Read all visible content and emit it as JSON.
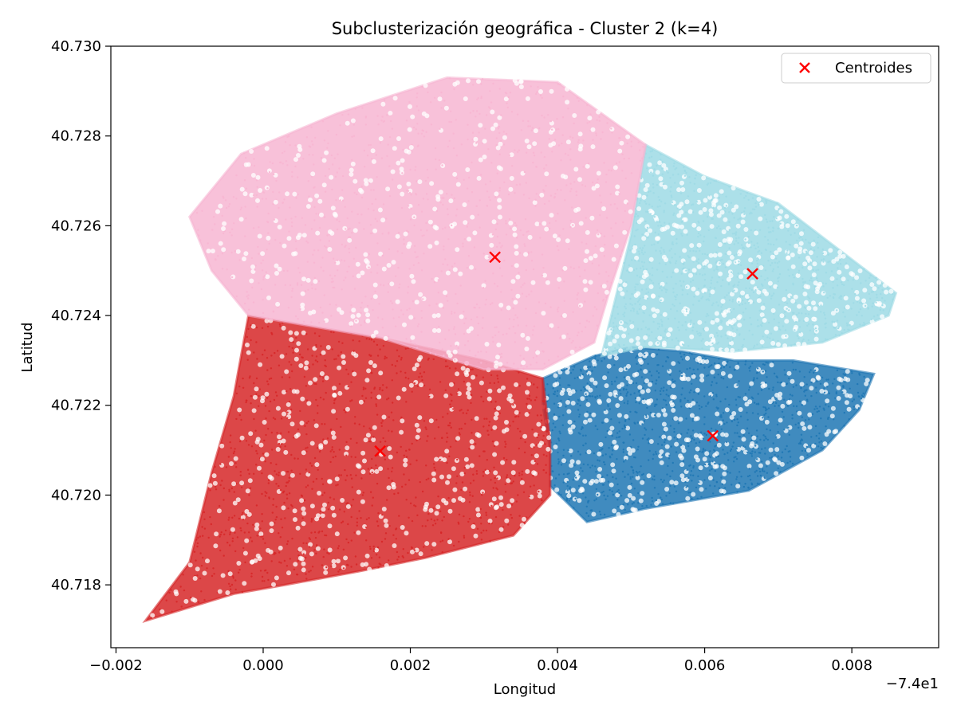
{
  "chart_data": {
    "type": "scatter",
    "title": "Subclusterización geográfica - Cluster 2 (k=4)",
    "xlabel": "Longitud",
    "ylabel": "Latitud",
    "x_offset_label": "−7.4e1",
    "xlim": [
      -0.00207,
      0.00918
    ],
    "ylim": [
      40.7166,
      40.73
    ],
    "x_ticks": [
      -0.002,
      0.0,
      0.002,
      0.004,
      0.006,
      0.008
    ],
    "x_tick_labels": [
      "−0.002",
      "0.000",
      "0.002",
      "0.004",
      "0.006",
      "0.008"
    ],
    "y_ticks": [
      40.718,
      40.72,
      40.722,
      40.724,
      40.726,
      40.728,
      40.73
    ],
    "y_tick_labels": [
      "40.718",
      "40.720",
      "40.722",
      "40.724",
      "40.726",
      "40.728",
      "40.730"
    ],
    "grid": false,
    "legend": {
      "position": "top-right",
      "entries": [
        "Centroides"
      ]
    },
    "centroid_color": "#ff0000",
    "clusters": [
      {
        "id": 0,
        "color": "#1f77b4",
        "centroid": [
          0.00611,
          40.72132
        ],
        "region": [
          [
            0.0038,
            40.7226
          ],
          [
            0.0045,
            40.7231
          ],
          [
            0.005,
            40.7233
          ],
          [
            0.0057,
            40.7232
          ],
          [
            0.0064,
            40.723
          ],
          [
            0.0072,
            40.723
          ],
          [
            0.0083,
            40.7227
          ],
          [
            0.0081,
            40.7219
          ],
          [
            0.0076,
            40.721
          ],
          [
            0.0066,
            40.7201
          ],
          [
            0.0052,
            40.7197
          ],
          [
            0.0044,
            40.7194
          ],
          [
            0.0039,
            40.7202
          ],
          [
            0.0039,
            40.721
          ],
          [
            0.0038,
            40.722
          ]
        ]
      },
      {
        "id": 1,
        "color": "#d62728",
        "centroid": [
          0.00159,
          40.72098
        ],
        "region": [
          [
            -0.0002,
            40.724
          ],
          [
            0.0016,
            40.7235
          ],
          [
            0.003,
            40.723
          ],
          [
            0.0038,
            40.7226
          ],
          [
            0.0039,
            40.7212
          ],
          [
            0.0039,
            40.72
          ],
          [
            0.0034,
            40.7191
          ],
          [
            0.0022,
            40.7186
          ],
          [
            0.0013,
            40.7183
          ],
          [
            0.0003,
            40.718
          ],
          [
            -0.0004,
            40.7178
          ],
          [
            -0.0016,
            40.7172
          ],
          [
            -0.001,
            40.7185
          ],
          [
            -0.0007,
            40.7205
          ],
          [
            -0.0004,
            40.7222
          ]
        ]
      },
      {
        "id": 2,
        "color": "#9edae5",
        "centroid": [
          0.00665,
          40.72493
        ],
        "region": [
          [
            0.0052,
            40.7278
          ],
          [
            0.006,
            40.7271
          ],
          [
            0.007,
            40.7265
          ],
          [
            0.0086,
            40.7245
          ],
          [
            0.0085,
            40.724
          ],
          [
            0.0076,
            40.7234
          ],
          [
            0.0064,
            40.7232
          ],
          [
            0.0052,
            40.7233
          ],
          [
            0.0046,
            40.7231
          ],
          [
            0.0047,
            40.7238
          ],
          [
            0.005,
            40.7258
          ]
        ]
      },
      {
        "id": 3,
        "color": "#f7b6d2",
        "centroid": [
          0.00315,
          40.7253
        ],
        "region": [
          [
            -0.0003,
            40.7276
          ],
          [
            0.001,
            40.7285
          ],
          [
            0.0025,
            40.7293
          ],
          [
            0.004,
            40.7292
          ],
          [
            0.0052,
            40.7278
          ],
          [
            0.005,
            40.726
          ],
          [
            0.0047,
            40.7245
          ],
          [
            0.0045,
            40.7234
          ],
          [
            0.0038,
            40.7228
          ],
          [
            0.003,
            40.7228
          ],
          [
            0.0016,
            40.7235
          ],
          [
            -0.0002,
            40.724
          ],
          [
            -0.0007,
            40.725
          ],
          [
            -0.001,
            40.7262
          ]
        ]
      }
    ]
  }
}
